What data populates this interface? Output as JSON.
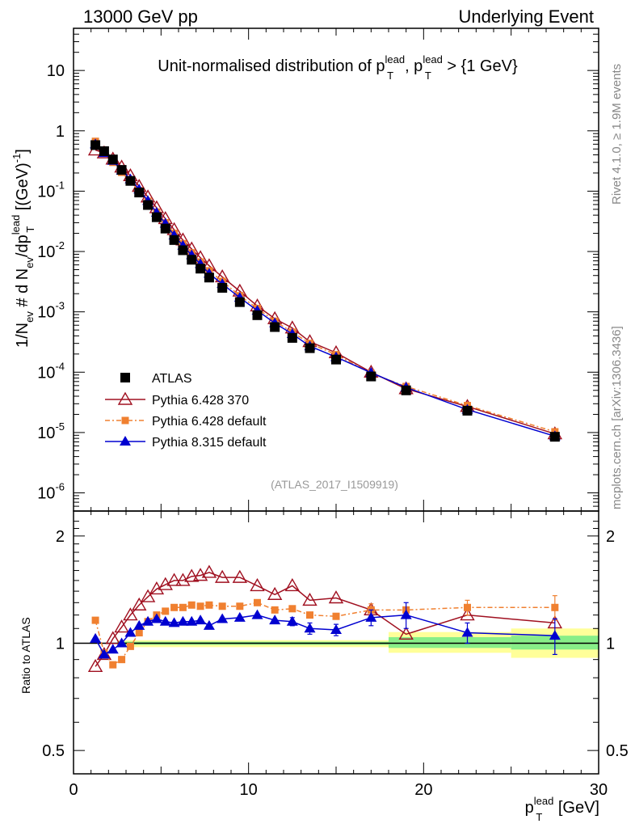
{
  "header": {
    "left": "13000 GeV pp",
    "right": "Underlying Event"
  },
  "side_labels": {
    "rivet": "Rivet 4.1.0, ≥ 1.9M events",
    "mcplots": "mcplots.cern.ch [arXiv:1306.3436]"
  },
  "chart_data": [
    {
      "type": "scatter",
      "panel": "main",
      "title": "Unit-normalised distribution of pT^lead, pT^lead > {1 GeV}",
      "title_parts": {
        "pre": "Unit-normalised distribution of p",
        "sup1": "lead",
        "sub1": "T",
        "mid": ", p",
        "sup2": "lead",
        "sub2": "T",
        "post": " > {1 GeV}"
      },
      "watermark": "(ATLAS_2017_I1509919)",
      "ylabel": "1/Nev # d Nev/dpT^lead [(GeV)^-1]",
      "ylabel_parts": {
        "a": "1/N",
        "a_sub": "ev",
        "b": " # d N",
        "b_sub": "ev",
        "c": "/dp",
        "c_sup": "lead",
        "c_sub": "T",
        "d": " [(GeV)",
        "d_sup": "-1",
        "e": "]"
      },
      "yscale": "log",
      "ylim": [
        5e-07,
        50
      ],
      "xlim": [
        0,
        30
      ],
      "ytick_labels": [
        {
          "v": 1e-06,
          "base": "10",
          "exp": "-6"
        },
        {
          "v": 1e-05,
          "base": "10",
          "exp": "-5"
        },
        {
          "v": 0.0001,
          "base": "10",
          "exp": "-4"
        },
        {
          "v": 0.001,
          "base": "10",
          "exp": "-3"
        },
        {
          "v": 0.01,
          "base": "10",
          "exp": "-2"
        },
        {
          "v": 0.1,
          "base": "10",
          "exp": "-1"
        },
        {
          "v": 1,
          "base": "1",
          "exp": ""
        },
        {
          "v": 10,
          "base": "10",
          "exp": ""
        }
      ],
      "legend_position": "bottom-left",
      "series": [
        {
          "name": "ATLAS",
          "color": "#000000",
          "marker": "square",
          "line": "none",
          "x": [
            1.25,
            1.75,
            2.25,
            2.75,
            3.25,
            3.75,
            4.25,
            4.75,
            5.25,
            5.75,
            6.25,
            6.75,
            7.25,
            7.75,
            8.5,
            9.5,
            10.5,
            11.5,
            12.5,
            13.5,
            15,
            17,
            19,
            22.5,
            27.5
          ],
          "y": [
            0.58,
            0.46,
            0.335,
            0.225,
            0.148,
            0.095,
            0.059,
            0.037,
            0.024,
            0.0155,
            0.0105,
            0.0073,
            0.0052,
            0.0037,
            0.0025,
            0.00145,
            0.00088,
            0.00056,
            0.00037,
            0.00025,
            0.000162,
            8.5e-05,
            5e-05,
            2.3e-05,
            8.5e-06
          ]
        },
        {
          "name": "Pythia 6.428 370",
          "color": "#a01020",
          "marker": "open-triangle",
          "line": "solid",
          "x": [
            1.25,
            1.75,
            2.25,
            2.75,
            3.25,
            3.75,
            4.25,
            4.75,
            5.25,
            5.75,
            6.25,
            6.75,
            7.25,
            7.75,
            8.5,
            9.5,
            10.5,
            11.5,
            12.5,
            13.5,
            15,
            17,
            19,
            22.5,
            27.5
          ],
          "y": [
            0.48,
            0.43,
            0.34,
            0.25,
            0.18,
            0.12,
            0.08,
            0.053,
            0.035,
            0.023,
            0.0155,
            0.011,
            0.0079,
            0.0058,
            0.0038,
            0.0022,
            0.00125,
            0.00077,
            0.00054,
            0.00032,
            0.00021,
            0.0001,
            5.3e-05,
            2.7e-05,
            9.5e-06
          ]
        },
        {
          "name": "Pythia 6.428 default",
          "color": "#f08030",
          "marker": "filled-square",
          "line": "dashdot",
          "x": [
            1.25,
            1.75,
            2.25,
            2.75,
            3.25,
            3.75,
            4.25,
            4.75,
            5.25,
            5.75,
            6.25,
            6.75,
            7.25,
            7.75,
            8.5,
            9.5,
            10.5,
            11.5,
            12.5,
            13.5,
            15,
            17,
            19,
            22.5,
            27.5
          ],
          "y": [
            0.67,
            0.43,
            0.3,
            0.205,
            0.145,
            0.102,
            0.068,
            0.045,
            0.03,
            0.02,
            0.0135,
            0.0095,
            0.0067,
            0.0048,
            0.0032,
            0.00185,
            0.00114,
            0.0007,
            0.00046,
            0.0003,
            0.000195,
            9.6e-05,
            5.8e-05,
            2.8e-05,
            1.03e-05
          ]
        },
        {
          "name": "Pythia 8.315 default",
          "color": "#0000d0",
          "marker": "filled-triangle",
          "line": "solid",
          "x": [
            1.25,
            1.75,
            2.25,
            2.75,
            3.25,
            3.75,
            4.25,
            4.75,
            5.25,
            5.75,
            6.25,
            6.75,
            7.25,
            7.75,
            8.5,
            9.5,
            10.5,
            11.5,
            12.5,
            13.5,
            15,
            17,
            19,
            22.5,
            27.5
          ],
          "y": [
            0.6,
            0.43,
            0.32,
            0.22,
            0.158,
            0.107,
            0.069,
            0.044,
            0.029,
            0.0185,
            0.0125,
            0.0087,
            0.0062,
            0.0043,
            0.0029,
            0.00172,
            0.00105,
            0.00065,
            0.00043,
            0.00027,
            0.000178,
            9.8e-05,
            5.6e-05,
            2.4e-05,
            8.7e-06
          ]
        }
      ]
    },
    {
      "type": "line",
      "panel": "ratio",
      "ylabel": "Ratio to ATLAS",
      "yscale": "log",
      "ylim": [
        0.43,
        2.35
      ],
      "xlim": [
        0,
        30
      ],
      "xlabel": "pT^lead [GeV]",
      "xlabel_parts": {
        "a": "p",
        "sub": "T",
        "sup": "lead",
        "b": " [GeV]"
      },
      "xticks": [
        "0",
        "10",
        "20",
        "30"
      ],
      "yticks": [
        {
          "v": 0.5,
          "label": "0.5"
        },
        {
          "v": 1,
          "label": "1"
        },
        {
          "v": 2,
          "label": "2"
        }
      ],
      "bands": [
        {
          "x0": 2.5,
          "x1": 18,
          "lo": 0.975,
          "hi": 1.02,
          "kind": "total"
        },
        {
          "x0": 18,
          "x1": 25,
          "lo": 0.94,
          "hi": 1.075,
          "kind": "total"
        },
        {
          "x0": 25,
          "x1": 30,
          "lo": 0.91,
          "hi": 1.1,
          "kind": "total"
        },
        {
          "x0": 2.5,
          "x1": 18,
          "lo": 0.99,
          "hi": 1.01,
          "kind": "stat"
        },
        {
          "x0": 18,
          "x1": 25,
          "lo": 0.97,
          "hi": 1.04,
          "kind": "stat"
        },
        {
          "x0": 25,
          "x1": 30,
          "lo": 0.96,
          "hi": 1.05,
          "kind": "stat"
        }
      ],
      "series": [
        {
          "name": "Pythia 6.428 370",
          "color": "#a01020",
          "marker": "open-triangle",
          "line": "solid",
          "x": [
            1.25,
            1.75,
            2.25,
            2.75,
            3.25,
            3.75,
            4.25,
            4.75,
            5.25,
            5.75,
            6.25,
            6.75,
            7.25,
            7.75,
            8.5,
            9.5,
            10.5,
            11.5,
            12.5,
            13.5,
            15,
            17,
            19,
            22.5,
            27.5
          ],
          "y": [
            0.86,
            0.93,
            1.03,
            1.11,
            1.2,
            1.28,
            1.35,
            1.42,
            1.46,
            1.5,
            1.5,
            1.54,
            1.55,
            1.58,
            1.53,
            1.53,
            1.45,
            1.37,
            1.45,
            1.32,
            1.34,
            1.24,
            1.06,
            1.2,
            1.14
          ],
          "err": [
            0,
            0,
            0,
            0,
            0,
            0,
            0,
            0,
            0,
            0,
            0,
            0,
            0,
            0,
            0,
            0,
            0,
            0,
            0,
            0,
            0,
            0,
            0,
            0,
            0
          ]
        },
        {
          "name": "Pythia 6.428 default",
          "color": "#f08030",
          "marker": "filled-square",
          "line": "dashdot",
          "x": [
            1.25,
            1.75,
            2.25,
            2.75,
            3.25,
            3.75,
            4.25,
            4.75,
            5.25,
            5.75,
            6.25,
            6.75,
            7.25,
            7.75,
            8.5,
            9.5,
            10.5,
            11.5,
            12.5,
            13.5,
            15,
            17,
            19,
            22.5,
            27.5
          ],
          "y": [
            1.16,
            0.94,
            0.87,
            0.9,
            0.98,
            1.07,
            1.15,
            1.2,
            1.23,
            1.26,
            1.26,
            1.28,
            1.27,
            1.28,
            1.27,
            1.27,
            1.3,
            1.24,
            1.25,
            1.2,
            1.19,
            1.24,
            1.24,
            1.26,
            1.26
          ],
          "err": [
            0,
            0,
            0,
            0,
            0,
            0,
            0,
            0,
            0,
            0,
            0,
            0,
            0,
            0,
            0,
            0,
            0,
            0,
            0,
            0,
            0,
            0.05,
            0,
            0.06,
            0.1
          ]
        },
        {
          "name": "Pythia 8.315 default",
          "color": "#0000d0",
          "marker": "filled-triangle",
          "line": "solid",
          "x": [
            1.25,
            1.75,
            2.25,
            2.75,
            3.25,
            3.75,
            4.25,
            4.75,
            5.25,
            5.75,
            6.25,
            6.75,
            7.25,
            7.75,
            8.5,
            9.5,
            10.5,
            11.5,
            12.5,
            13.5,
            15,
            17,
            19,
            22.5,
            27.5
          ],
          "y": [
            1.03,
            0.93,
            0.96,
            1.0,
            1.07,
            1.12,
            1.15,
            1.17,
            1.15,
            1.14,
            1.15,
            1.15,
            1.16,
            1.12,
            1.17,
            1.18,
            1.2,
            1.16,
            1.15,
            1.1,
            1.09,
            1.18,
            1.2,
            1.07,
            1.05
          ],
          "err": [
            0,
            0,
            0,
            0,
            0,
            0,
            0,
            0,
            0,
            0,
            0,
            0,
            0,
            0,
            0,
            0,
            0,
            0,
            0.03,
            0.04,
            0.04,
            0.06,
            0.1,
            0.07,
            0.12
          ]
        }
      ]
    }
  ]
}
